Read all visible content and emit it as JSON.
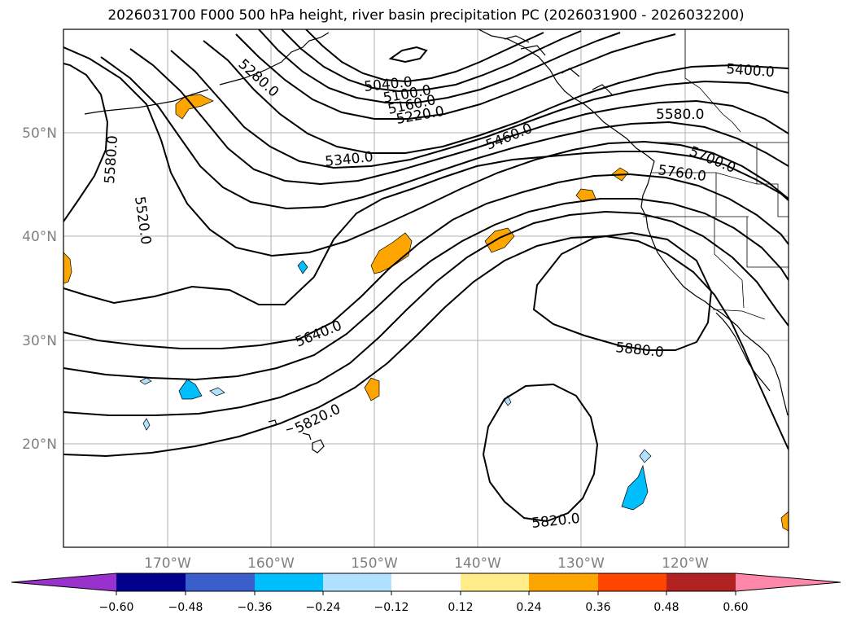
{
  "title": "2026031700 F000 500 hPa height, river basin precipitation PC (2026031900 - 2026032200)",
  "map": {
    "lat_labels": [
      "50°N",
      "40°N",
      "30°N",
      "20°N"
    ],
    "lon_labels": [
      "170°W",
      "160°W",
      "150°W",
      "140°W",
      "130°W",
      "120°W"
    ],
    "gridlines": true,
    "coastline_color": "#000000",
    "contour_color": "#000000",
    "contour_labels": [
      "5040.0",
      "5100.0",
      "5160.0",
      "5220.0",
      "5280.0",
      "5340.0",
      "5400.0",
      "5460.0",
      "5520.0",
      "5580.0",
      "5580.0",
      "5640.0",
      "5700.0",
      "5760.0",
      "5820.0",
      "5820.0",
      "5880.0"
    ]
  },
  "colorbar": {
    "tick_labels": [
      "−0.60",
      "−0.48",
      "−0.36",
      "−0.24",
      "−0.12",
      "0.12",
      "0.24",
      "0.36",
      "0.48",
      "0.60"
    ],
    "colors": [
      "#9932cc",
      "#00008b",
      "#3a5fcd",
      "#00bfff",
      "#b0e2ff",
      "#ffffff",
      "#ffec8b",
      "#ffa500",
      "#ff4500",
      "#b22222",
      "#ff88aa"
    ],
    "extend": "both"
  },
  "precip_colors": {
    "positive_low": "#ffec8b",
    "positive_mid": "#ffa500",
    "negative_low": "#b0e2ff",
    "negative_mid": "#00bfff"
  }
}
